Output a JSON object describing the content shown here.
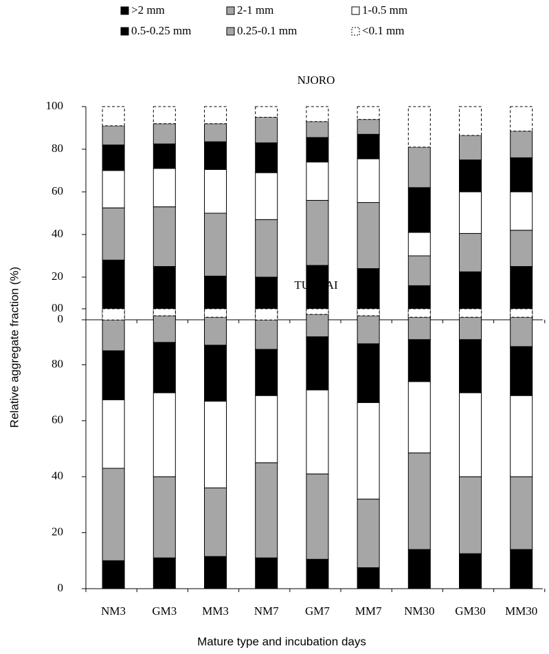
{
  "chart_data": [
    {
      "type": "stacked_bar",
      "title": "NJORO",
      "ylabel": "Relative aggregate fraction  (%)",
      "ylim": [
        0,
        100
      ],
      "yticks": [
        0,
        20,
        40,
        60,
        80,
        100
      ],
      "series": [
        {
          "name": ">2 mm",
          "color": "#000000",
          "values": [
            28,
            25,
            20.5,
            20,
            25.5,
            24,
            16,
            22.5,
            25
          ]
        },
        {
          "name": "2-1 mm",
          "color": "#a6a6a6",
          "values": [
            24.5,
            28,
            29.5,
            27,
            30.5,
            31,
            14,
            18,
            17
          ]
        },
        {
          "name": "1-0.5 mm",
          "color": "#ffffff",
          "values": [
            17.5,
            18,
            20.5,
            22,
            18,
            20.5,
            11,
            19.5,
            18
          ]
        },
        {
          "name": "0.5-0.25 mm",
          "color": "#000000",
          "values": [
            12,
            11.5,
            13,
            14,
            11.5,
            11.5,
            21,
            15,
            16
          ]
        },
        {
          "name": "0.25-0.1 mm",
          "color": "#a6a6a6",
          "values": [
            9,
            9.5,
            8.5,
            12,
            7.5,
            7,
            19,
            11.5,
            12.5
          ]
        },
        {
          "name": "<0.1 mm",
          "color": "#ffffff",
          "line_style": "dashed",
          "values": [
            9,
            8,
            8,
            5,
            7,
            6,
            19,
            13.5,
            11.5
          ]
        }
      ]
    },
    {
      "type": "stacked_bar",
      "title": "TUNYAI",
      "xlabel": "Mature type and incubation days",
      "categories": [
        "NM3",
        "GM3",
        "MM3",
        "NM7",
        "GM7",
        "MM7",
        "NM30",
        "GM30",
        "MM30"
      ],
      "ylim": [
        0,
        100
      ],
      "yticks": [
        0,
        20,
        40,
        60,
        80,
        {
          "value": 100,
          "label": "00"
        }
      ],
      "series": [
        {
          "name": ">2 mm",
          "color": "#000000",
          "values": [
            10,
            11,
            11.5,
            11,
            10.5,
            7.5,
            14,
            12.5,
            14
          ]
        },
        {
          "name": "2-1 mm",
          "color": "#a6a6a6",
          "values": [
            33,
            29,
            24.5,
            34,
            30.5,
            24.5,
            34.5,
            27.5,
            26
          ]
        },
        {
          "name": "1-0.5 mm",
          "color": "#ffffff",
          "values": [
            24.5,
            30,
            31,
            24,
            30,
            34.5,
            25.5,
            30,
            29
          ]
        },
        {
          "name": "0.5-0.25 mm",
          "color": "#000000",
          "values": [
            17.5,
            18,
            20,
            16.5,
            19,
            21,
            15,
            19,
            17.5
          ]
        },
        {
          "name": "0.25-0.1 mm",
          "color": "#a6a6a6",
          "values": [
            11,
            9.5,
            10,
            10.5,
            8,
            10,
            8,
            8,
            10.5
          ]
        },
        {
          "name": "<0.1 mm",
          "color": "#ffffff",
          "line_style": "dashed",
          "values": [
            4,
            2.5,
            3,
            4,
            2,
            2.5,
            3,
            3,
            3
          ]
        }
      ]
    }
  ]
}
